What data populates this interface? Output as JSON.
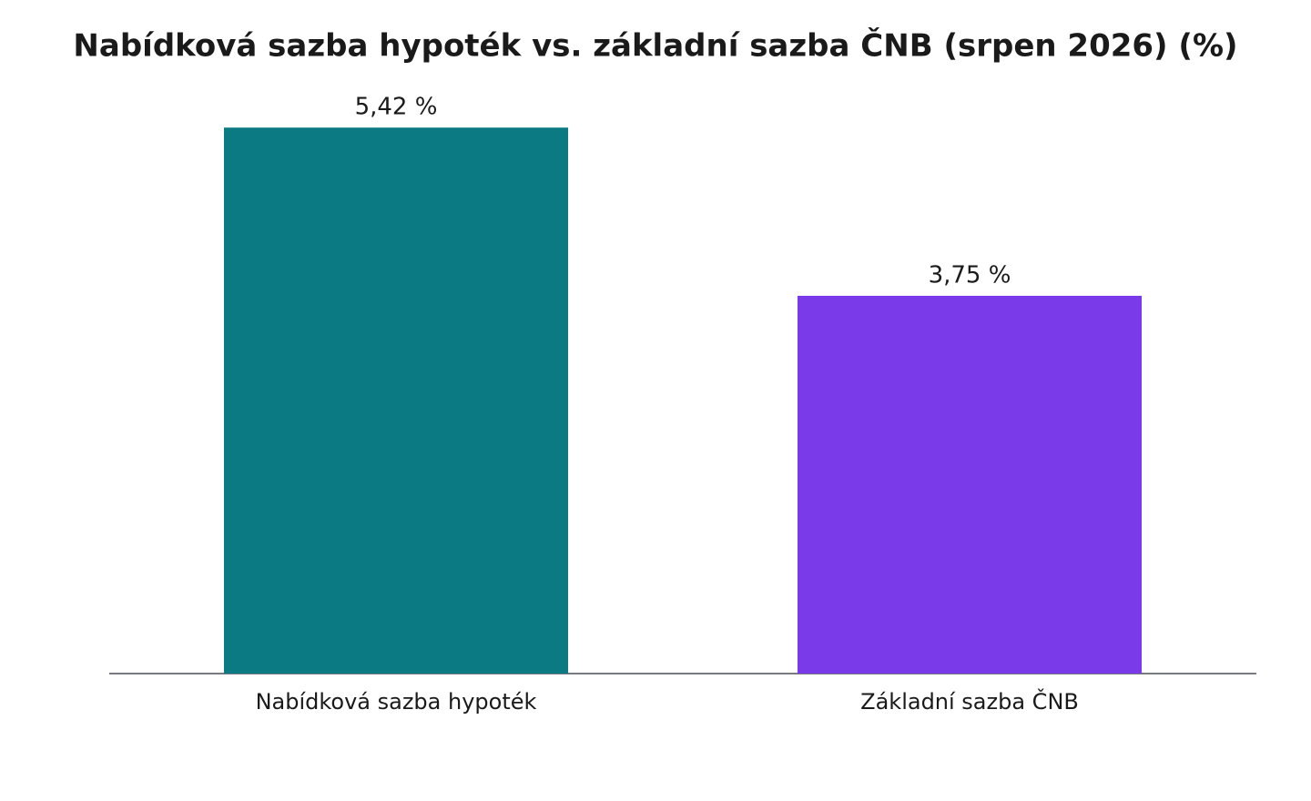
{
  "chart_data": {
    "type": "bar",
    "title": "Nabídková sazba hypoték vs. základní sazba ČNB (srpen 2026) (%)",
    "categories": [
      "Nabídková sazba hypoték",
      "Základní sazba ČNB"
    ],
    "values": [
      5.42,
      3.75
    ],
    "value_labels": [
      "5,42 %",
      "3,75 %"
    ],
    "colors": [
      "#0b7a83",
      "#7a3aea"
    ],
    "ylim": [
      0,
      6
    ]
  }
}
